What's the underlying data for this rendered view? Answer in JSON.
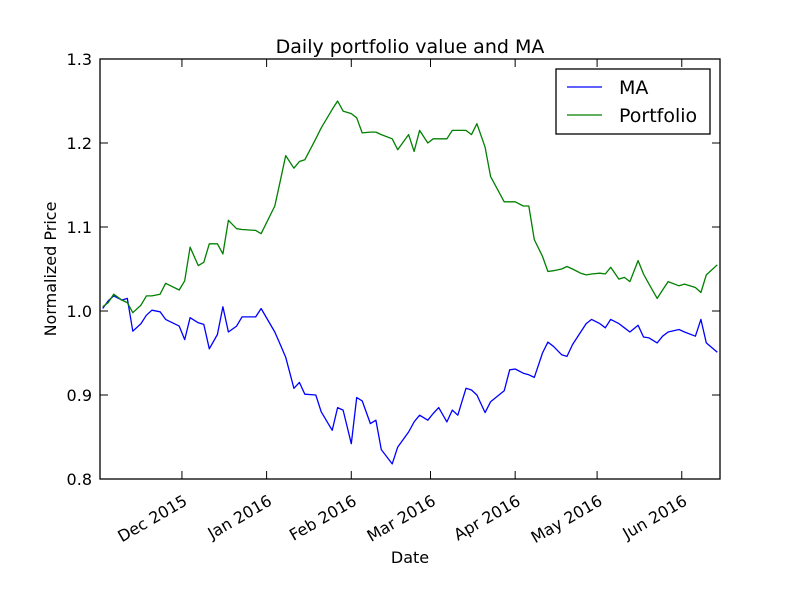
{
  "chart_data": {
    "type": "line",
    "title": "Daily portfolio value and MA",
    "xlabel": "Date",
    "ylabel": "Normalized Price",
    "xlim": [
      "2015-11-01",
      "2016-06-15"
    ],
    "ylim": [
      0.8,
      1.3
    ],
    "y_ticks": [
      0.8,
      0.9,
      1.0,
      1.1,
      1.2,
      1.3
    ],
    "y_tick_labels": [
      "0.8",
      "0.9",
      "1.0",
      "1.1",
      "1.2",
      "1.3"
    ],
    "x_ticks": [
      "2015-12-01",
      "2016-01-01",
      "2016-02-01",
      "2016-03-01",
      "2016-04-01",
      "2016-05-01",
      "2016-06-01"
    ],
    "x_tick_labels": [
      "Dec 2015",
      "Jan 2016",
      "Feb 2016",
      "Mar 2016",
      "Apr 2016",
      "May 2016",
      "Jun 2016"
    ],
    "grid": false,
    "legend_position": "top-right",
    "series": [
      {
        "name": "MA",
        "color": "#0000ff",
        "x": [
          "2015-11-02",
          "2015-11-04",
          "2015-11-06",
          "2015-11-09",
          "2015-11-11",
          "2015-11-13",
          "2015-11-16",
          "2015-11-18",
          "2015-11-20",
          "2015-11-23",
          "2015-11-25",
          "2015-11-30",
          "2015-12-02",
          "2015-12-04",
          "2015-12-07",
          "2015-12-09",
          "2015-12-11",
          "2015-12-14",
          "2015-12-16",
          "2015-12-18",
          "2015-12-21",
          "2015-12-23",
          "2015-12-28",
          "2015-12-30",
          "2016-01-04",
          "2016-01-06",
          "2016-01-08",
          "2016-01-11",
          "2016-01-13",
          "2016-01-15",
          "2016-01-19",
          "2016-01-21",
          "2016-01-25",
          "2016-01-27",
          "2016-01-29",
          "2016-02-01",
          "2016-02-03",
          "2016-02-05",
          "2016-02-08",
          "2016-02-10",
          "2016-02-12",
          "2016-02-16",
          "2016-02-18",
          "2016-02-22",
          "2016-02-24",
          "2016-02-26",
          "2016-02-29",
          "2016-03-02",
          "2016-03-04",
          "2016-03-07",
          "2016-03-09",
          "2016-03-11",
          "2016-03-14",
          "2016-03-16",
          "2016-03-18",
          "2016-03-21",
          "2016-03-23",
          "2016-03-28",
          "2016-03-30",
          "2016-04-01",
          "2016-04-04",
          "2016-04-06",
          "2016-04-08",
          "2016-04-11",
          "2016-04-13",
          "2016-04-15",
          "2016-04-18",
          "2016-04-20",
          "2016-04-22",
          "2016-04-25",
          "2016-04-27",
          "2016-04-29",
          "2016-05-02",
          "2016-05-04",
          "2016-05-06",
          "2016-05-09",
          "2016-05-11",
          "2016-05-13",
          "2016-05-16",
          "2016-05-18",
          "2016-05-20",
          "2016-05-23",
          "2016-05-25",
          "2016-05-27",
          "2016-05-31",
          "2016-06-02",
          "2016-06-06",
          "2016-06-08",
          "2016-06-10",
          "2016-06-14"
        ],
        "y": [
          1.003,
          1.012,
          1.018,
          1.013,
          1.015,
          0.976,
          0.985,
          0.995,
          1.001,
          0.999,
          0.99,
          0.982,
          0.966,
          0.992,
          0.986,
          0.984,
          0.955,
          0.972,
          1.005,
          0.975,
          0.982,
          0.993,
          0.993,
          1.003,
          0.975,
          0.96,
          0.945,
          0.908,
          0.915,
          0.901,
          0.9,
          0.88,
          0.858,
          0.885,
          0.882,
          0.842,
          0.897,
          0.893,
          0.866,
          0.87,
          0.835,
          0.818,
          0.838,
          0.856,
          0.868,
          0.876,
          0.87,
          0.878,
          0.885,
          0.868,
          0.882,
          0.876,
          0.908,
          0.906,
          0.9,
          0.879,
          0.892,
          0.905,
          0.93,
          0.931,
          0.926,
          0.924,
          0.921,
          0.95,
          0.963,
          0.958,
          0.948,
          0.946,
          0.96,
          0.975,
          0.985,
          0.99,
          0.985,
          0.98,
          0.99,
          0.985,
          0.98,
          0.975,
          0.983,
          0.969,
          0.968,
          0.962,
          0.97,
          0.975,
          0.978,
          0.975,
          0.97,
          0.99,
          0.962,
          0.951
        ]
      },
      {
        "name": "Portfolio",
        "color": "#008000",
        "x": [
          "2015-11-02",
          "2015-11-04",
          "2015-11-06",
          "2015-11-09",
          "2015-11-11",
          "2015-11-13",
          "2015-11-16",
          "2015-11-18",
          "2015-11-20",
          "2015-11-23",
          "2015-11-25",
          "2015-11-30",
          "2015-12-02",
          "2015-12-04",
          "2015-12-07",
          "2015-12-09",
          "2015-12-11",
          "2015-12-14",
          "2015-12-16",
          "2015-12-18",
          "2015-12-21",
          "2015-12-23",
          "2015-12-28",
          "2015-12-30",
          "2016-01-04",
          "2016-01-06",
          "2016-01-08",
          "2016-01-11",
          "2016-01-13",
          "2016-01-15",
          "2016-01-19",
          "2016-01-21",
          "2016-01-25",
          "2016-01-27",
          "2016-01-29",
          "2016-02-01",
          "2016-02-03",
          "2016-02-05",
          "2016-02-08",
          "2016-02-10",
          "2016-02-12",
          "2016-02-16",
          "2016-02-18",
          "2016-02-22",
          "2016-02-24",
          "2016-02-26",
          "2016-02-29",
          "2016-03-02",
          "2016-03-04",
          "2016-03-07",
          "2016-03-09",
          "2016-03-11",
          "2016-03-14",
          "2016-03-16",
          "2016-03-18",
          "2016-03-21",
          "2016-03-23",
          "2016-03-28",
          "2016-03-30",
          "2016-04-01",
          "2016-04-04",
          "2016-04-06",
          "2016-04-08",
          "2016-04-11",
          "2016-04-13",
          "2016-04-15",
          "2016-04-18",
          "2016-04-20",
          "2016-04-22",
          "2016-04-25",
          "2016-04-27",
          "2016-04-29",
          "2016-05-02",
          "2016-05-04",
          "2016-05-06",
          "2016-05-09",
          "2016-05-11",
          "2016-05-13",
          "2016-05-16",
          "2016-05-18",
          "2016-05-20",
          "2016-05-23",
          "2016-05-25",
          "2016-05-27",
          "2016-05-31",
          "2016-06-02",
          "2016-06-06",
          "2016-06-08",
          "2016-06-10",
          "2016-06-14"
        ],
        "y": [
          1.005,
          1.01,
          1.02,
          1.013,
          1.01,
          0.998,
          1.007,
          1.018,
          1.018,
          1.02,
          1.033,
          1.025,
          1.036,
          1.076,
          1.054,
          1.058,
          1.08,
          1.08,
          1.068,
          1.108,
          1.098,
          1.097,
          1.096,
          1.092,
          1.125,
          1.155,
          1.185,
          1.17,
          1.178,
          1.18,
          1.205,
          1.218,
          1.24,
          1.25,
          1.238,
          1.235,
          1.23,
          1.212,
          1.213,
          1.213,
          1.21,
          1.205,
          1.192,
          1.21,
          1.19,
          1.215,
          1.2,
          1.205,
          1.205,
          1.205,
          1.215,
          1.215,
          1.215,
          1.21,
          1.223,
          1.195,
          1.16,
          1.13,
          1.13,
          1.13,
          1.125,
          1.125,
          1.085,
          1.065,
          1.047,
          1.048,
          1.05,
          1.053,
          1.05,
          1.045,
          1.043,
          1.044,
          1.045,
          1.044,
          1.052,
          1.038,
          1.04,
          1.035,
          1.06,
          1.044,
          1.032,
          1.015,
          1.025,
          1.035,
          1.03,
          1.032,
          1.028,
          1.022,
          1.043,
          1.055
        ]
      }
    ]
  }
}
